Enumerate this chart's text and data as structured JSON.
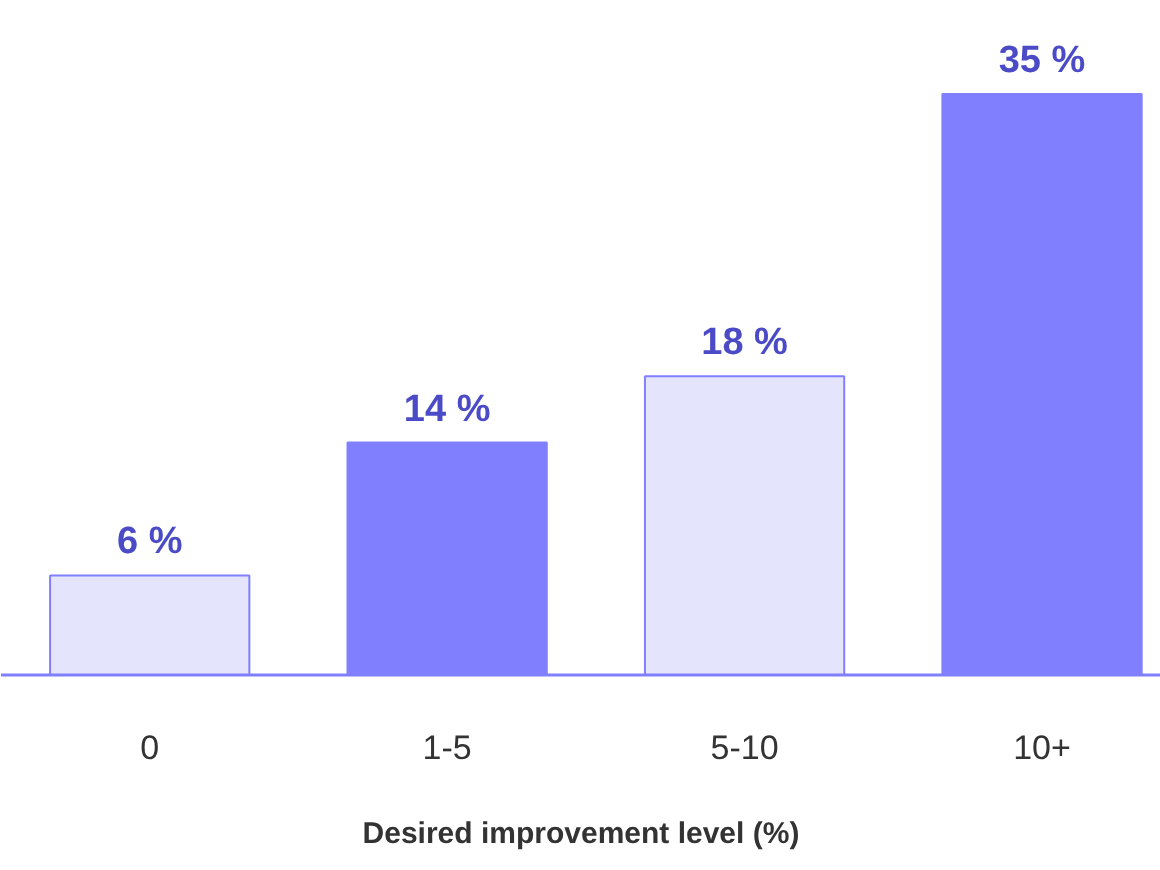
{
  "chart_data": {
    "type": "bar",
    "xlabel": "Desired improvement level (%)",
    "categories": [
      "0",
      "1-5",
      "5-10",
      "10+"
    ],
    "values": [
      6,
      14,
      18,
      35
    ],
    "value_labels": [
      "6 %",
      "14 %",
      "18 %",
      "35 %"
    ],
    "colors": [
      "#e4e4fc",
      "#8080ff",
      "#e4e4fc",
      "#8080ff"
    ],
    "grid": false
  }
}
